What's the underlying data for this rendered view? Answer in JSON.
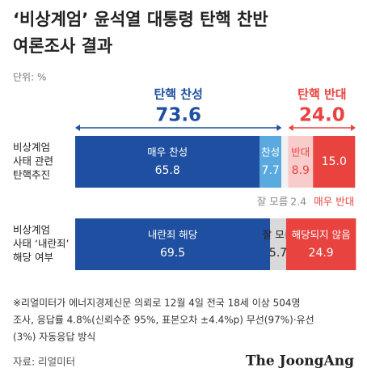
{
  "chart_data": {
    "type": "stacked-bar",
    "title_lines": [
      "‘비상계엄’ 윤석열 대통령 탄핵 찬반",
      "여론조사 결과"
    ],
    "unit": "단위: %",
    "xlim": [
      0,
      100
    ],
    "groups": [
      {
        "name": "탄핵 찬성",
        "value": 73.6,
        "color": "#1f4fa0",
        "side": "left"
      },
      {
        "name": "탄핵 반대",
        "value": 24.0,
        "value_label": "24.0",
        "color": "#e8433f",
        "side": "right"
      }
    ],
    "rows": [
      {
        "label_lines": [
          "비상계엄",
          "사태 관련",
          "탄핵추진"
        ],
        "segments": [
          {
            "name": "매우 찬성",
            "value": 65.8,
            "color": "#1f4fa0",
            "text_color": "#ffffff"
          },
          {
            "name": "찬성",
            "value": 7.7,
            "color": "#5aaae0",
            "text_color": "#ffffff"
          },
          {
            "name": "잘 모름",
            "value": 2.4,
            "color": "#f2f2f2",
            "text_color": "#888888",
            "name_position": "below"
          },
          {
            "name": "반대",
            "value": 8.9,
            "color": "#f9cccc",
            "text_color": "#e8433f"
          },
          {
            "name": "매우 반대",
            "value": 15.0,
            "value_label": "15.0",
            "color": "#e8433f",
            "text_color": "#ffffff",
            "name_position": "below"
          }
        ]
      },
      {
        "label_lines": [
          "비상계엄",
          "사태 ‘내란죄’",
          "해당 여부"
        ],
        "segments": [
          {
            "name": "내란죄 해당",
            "value": 69.5,
            "color": "#1f4fa0",
            "text_color": "#ffffff"
          },
          {
            "name": "잘 모름",
            "value": 5.7,
            "color": "#d9d9d9",
            "text_color": "#222222"
          },
          {
            "name": "해당되지 않음",
            "value": 24.9,
            "color": "#e8433f",
            "text_color": "#ffffff"
          }
        ]
      }
    ],
    "note_lines": [
      "※리얼미터가 에너지경제신문 의뢰로 12월 4일 전국 18세 이상 504명",
      "조사, 응답률 4.8%(신뢰수준 95%, 표본오차 ±4.4%p) 무선(97%)·유선",
      "(3%) 자동응답 방식"
    ],
    "source": "자료: 리얼미터",
    "brand": "The JoongAng"
  }
}
